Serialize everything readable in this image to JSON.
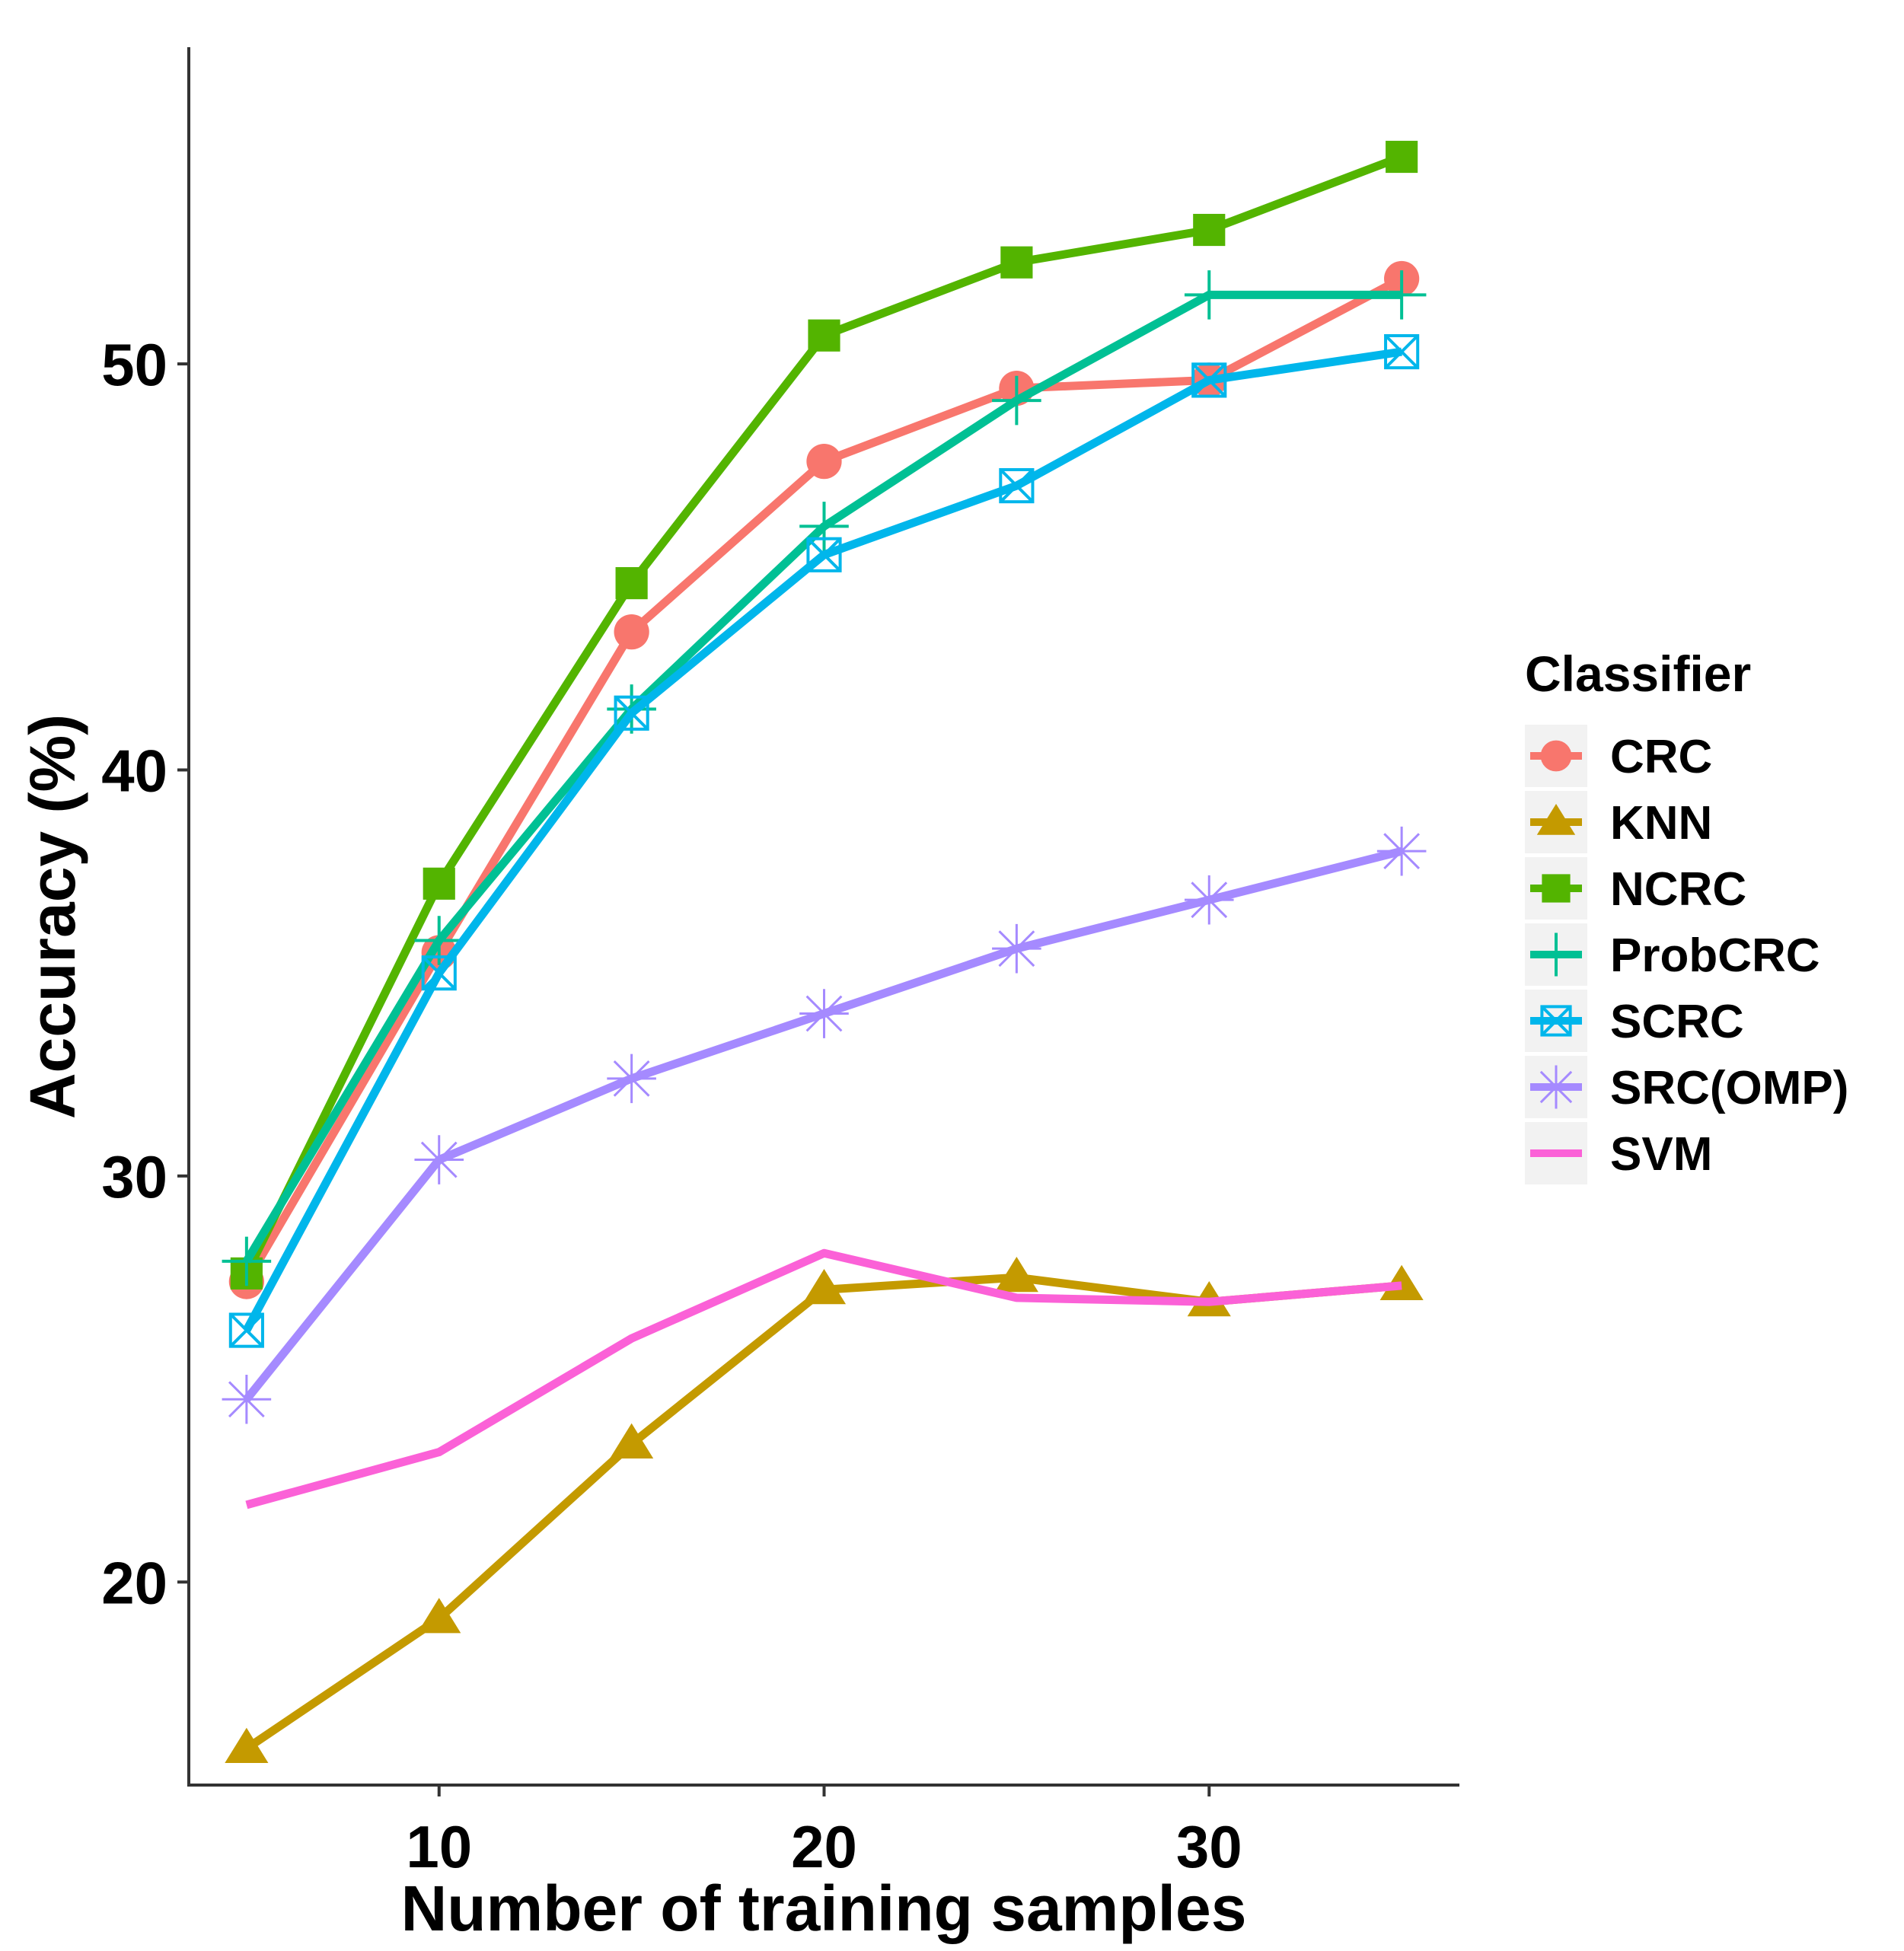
{
  "chart_data": {
    "type": "line",
    "title": "",
    "xlabel": "Number of training samples",
    "ylabel": "Accuracy (%)",
    "x": [
      5,
      10,
      15,
      20,
      25,
      30,
      35
    ],
    "xlim": [
      3.5,
      36.5
    ],
    "ylim": [
      15.0,
      57.8
    ],
    "xticks": [
      10,
      20,
      30
    ],
    "yticks": [
      20,
      30,
      40,
      50
    ],
    "xtick_labels": [
      "10",
      "20",
      "30"
    ],
    "ytick_labels": [
      "20",
      "30",
      "40",
      "50"
    ],
    "grid": false,
    "legend_title": "Classifier",
    "legend_position": "right",
    "series": [
      {
        "name": "CRC",
        "color": "#f8766d",
        "marker": "circle",
        "values": [
          27.4,
          35.5,
          43.4,
          47.6,
          49.4,
          49.6,
          52.1
        ]
      },
      {
        "name": "KNN",
        "color": "#c49a00",
        "marker": "triangle",
        "values": [
          15.9,
          19.1,
          23.4,
          27.2,
          27.5,
          26.9,
          27.3
        ]
      },
      {
        "name": "NCRC",
        "color": "#53b400",
        "marker": "square",
        "values": [
          27.6,
          37.2,
          44.6,
          50.7,
          52.5,
          53.3,
          55.1
        ]
      },
      {
        "name": "ProbCRC",
        "color": "#00c094",
        "marker": "plus",
        "values": [
          27.9,
          35.8,
          41.5,
          46.0,
          49.1,
          51.7,
          51.7
        ]
      },
      {
        "name": "SCRC",
        "color": "#00b6eb",
        "marker": "boxcross",
        "values": [
          26.2,
          35.0,
          41.4,
          45.3,
          47.0,
          49.6,
          50.3
        ]
      },
      {
        "name": "SRC(OMP)",
        "color": "#a58aff",
        "marker": "asterisk",
        "values": [
          24.5,
          30.4,
          32.4,
          34.0,
          35.6,
          36.8,
          38.0
        ]
      },
      {
        "name": "SVM",
        "color": "#fb61d7",
        "marker": "none",
        "values": [
          21.9,
          23.2,
          26.0,
          28.1,
          27.0,
          26.9,
          27.3
        ]
      }
    ]
  }
}
